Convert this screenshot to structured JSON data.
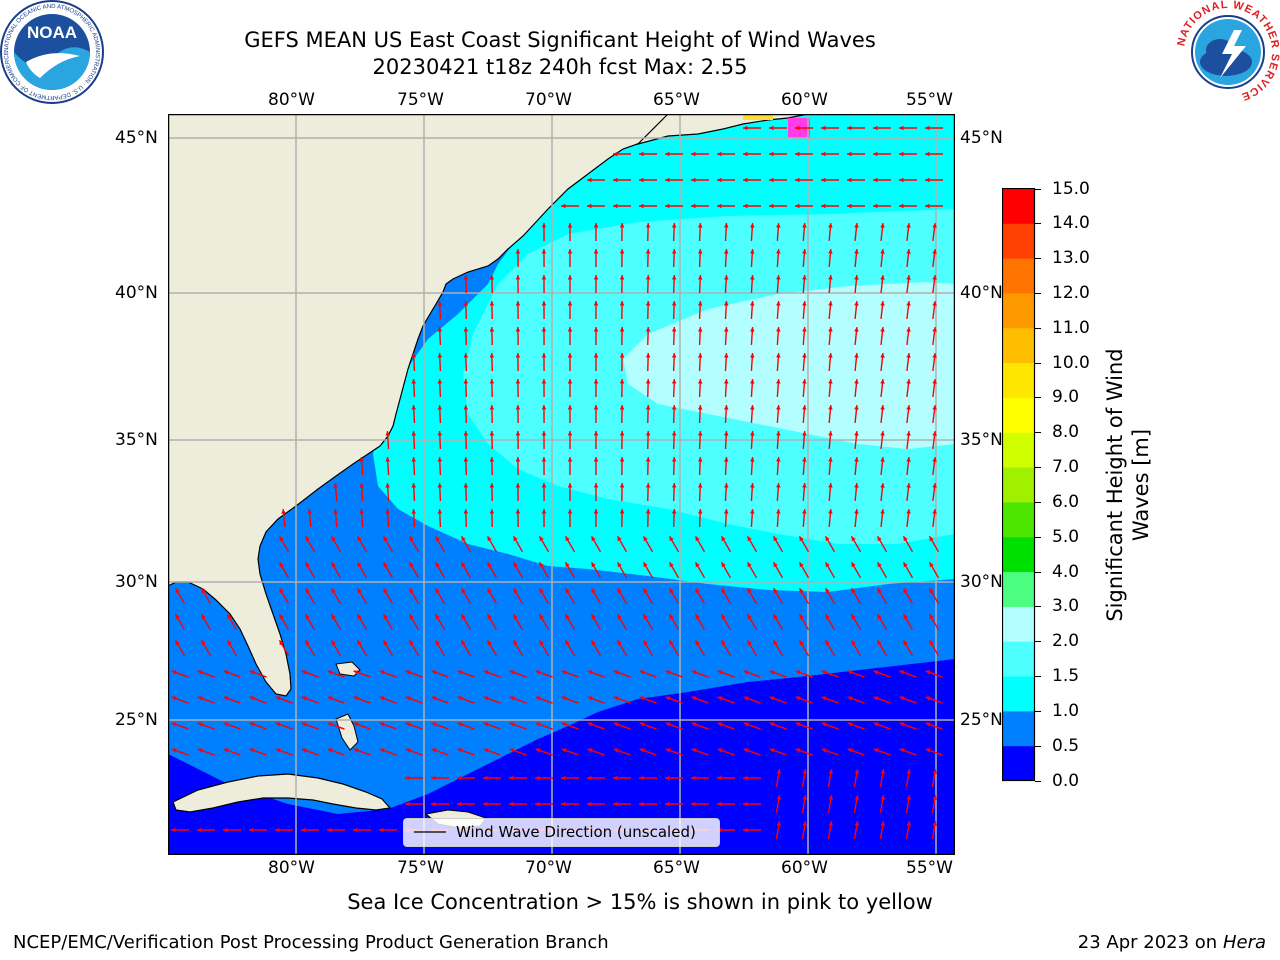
{
  "header": {
    "title_line1": "GEFS MEAN US East Coast Significant Height of Wind Waves",
    "title_line2": "20230421 t18z 240h fcst   Max: 2.55"
  },
  "map": {
    "lon_labels": [
      "80°W",
      "75°W",
      "70°W",
      "65°W",
      "60°W",
      "55°W"
    ],
    "lat_labels_left": [
      "45°N",
      "40°N",
      "35°N",
      "30°N",
      "25°N"
    ],
    "lat_labels_right": [
      "45°N",
      "40°N",
      "35°N",
      "30°N",
      "25°N"
    ],
    "land_color": "#eeeddc",
    "arrow_color": "#ff0000",
    "grid_color": "#b0b0b0"
  },
  "legend": {
    "label": "Wind Wave Direction (unscaled)"
  },
  "colorbar": {
    "label": "Significant Height of Wind Waves [m]",
    "label_line1": "Significant Height of Wind",
    "label_line2": "Waves [m]",
    "ticks": [
      "0.0",
      "0.5",
      "1.0",
      "1.5",
      "2.0",
      "3.0",
      "4.0",
      "5.0",
      "6.0",
      "7.0",
      "8.0",
      "9.0",
      "10.0",
      "11.0",
      "12.0",
      "13.0",
      "14.0",
      "15.0"
    ],
    "colors": [
      "#0000ff",
      "#0080ff",
      "#00ffff",
      "#4dffff",
      "#b3ffff",
      "#4dff80",
      "#00e000",
      "#4ce600",
      "#a0f000",
      "#d0ff00",
      "#ffff00",
      "#ffe600",
      "#ffbf00",
      "#ff9900",
      "#ff7300",
      "#ff4000",
      "#ff0000"
    ]
  },
  "footer": {
    "sea_ice_note": "Sea Ice Concentration > 15% is shown in pink to yellow",
    "producer": "NCEP/EMC/Verification Post Processing Product Generation Branch",
    "date": "23 Apr 2023 on ",
    "machine": "Hera"
  },
  "logos": {
    "noaa_text": "NOAA",
    "noaa_ring": "NATIONAL OCEANIC AND ATMOSPHERIC ADMINISTRATION · U.S. DEPARTMENT OF COMMERCE",
    "nws_ring": "NATIONAL WEATHER SERVICE"
  }
}
